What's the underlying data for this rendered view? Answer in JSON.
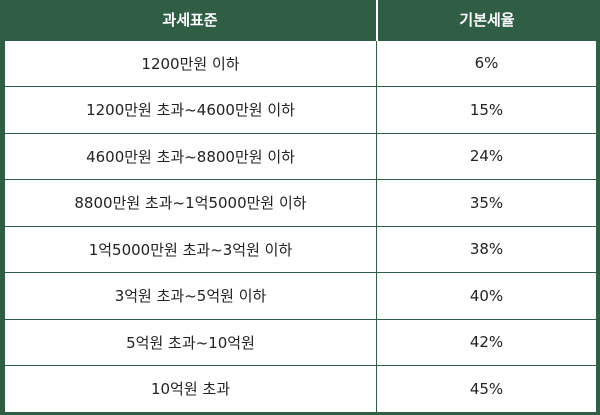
{
  "table": {
    "headers": [
      "과세표준",
      "기본세율"
    ],
    "rows": [
      [
        "1200만원 이하",
        "6%"
      ],
      [
        "1200만원 초과~4600만원 이하",
        "15%"
      ],
      [
        "4600만원 초과~8800만원 이하",
        "24%"
      ],
      [
        "8800만원 초과~1억5000만원 이하",
        "35%"
      ],
      [
        "1억5000만원 초과~3억원 이하",
        "38%"
      ],
      [
        "3억원 초과~5억원 이하",
        "40%"
      ],
      [
        "5억원 초과~10억원",
        "42%"
      ],
      [
        "10억원 초과",
        "45%"
      ]
    ]
  },
  "colors": {
    "header_bg": "#2f5e45",
    "header_text": "#ffffff",
    "cell_bg": "#ffffff",
    "cell_text": "#222222"
  }
}
